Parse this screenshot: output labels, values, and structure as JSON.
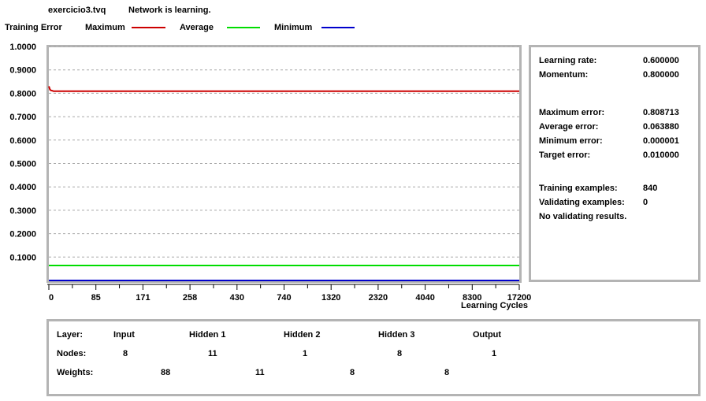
{
  "window": {
    "filename": "exercicio3.tvq",
    "status": "Network is learning."
  },
  "legend": {
    "title": "Training Error",
    "items": [
      {
        "label": "Maximum",
        "color": "#cc0000"
      },
      {
        "label": "Average",
        "color": "#00dd00"
      },
      {
        "label": "Minimum",
        "color": "#0000cc"
      }
    ]
  },
  "chart_data": {
    "type": "line",
    "xlabel": "Learning Cycles",
    "x_ticks": [
      "0",
      "85",
      "171",
      "258",
      "430",
      "740",
      "1320",
      "2320",
      "4040",
      "8300",
      "17200"
    ],
    "y_ticks": [
      "1.0000",
      "0.9000",
      "0.8000",
      "0.7000",
      "0.6000",
      "0.5000",
      "0.4000",
      "0.3000",
      "0.2000",
      "0.1000"
    ],
    "ylim": [
      0,
      1
    ],
    "grid": true,
    "series": [
      {
        "name": "Maximum",
        "color": "#cc0000",
        "values": [
          0.83,
          0.815,
          0.812,
          0.8109,
          0.8088,
          0.8088
        ]
      },
      {
        "name": "Average",
        "color": "#00dd00",
        "values": [
          0.0639,
          0.0639,
          0.0639,
          0.0639,
          0.0639,
          0.0639
        ]
      },
      {
        "name": "Minimum",
        "color": "#0000cc",
        "values": [
          1e-06,
          1e-06,
          1e-06,
          1e-06,
          1e-06,
          1e-06
        ]
      }
    ]
  },
  "stats": {
    "learning_rate_label": "Learning rate:",
    "learning_rate": "0.600000",
    "momentum_label": "Momentum:",
    "momentum": "0.800000",
    "max_error_label": "Maximum error:",
    "max_error": "0.808713",
    "avg_error_label": "Average error:",
    "avg_error": "0.063880",
    "min_error_label": "Minimum error:",
    "min_error": "0.000001",
    "target_error_label": "Target error:",
    "target_error": "0.010000",
    "training_examples_label": "Training examples:",
    "training_examples": "840",
    "validating_examples_label": "Validating examples:",
    "validating_examples": "0",
    "validating_results": "No validating results."
  },
  "network": {
    "layer_label": "Layer:",
    "nodes_label": "Nodes:",
    "weights_label": "Weights:",
    "layers": [
      "Input",
      "Hidden 1",
      "Hidden 2",
      "Hidden 3",
      "Output"
    ],
    "nodes": [
      "8",
      "11",
      "1",
      "8",
      "1"
    ],
    "weights": [
      "88",
      "11",
      "8",
      "8"
    ]
  }
}
